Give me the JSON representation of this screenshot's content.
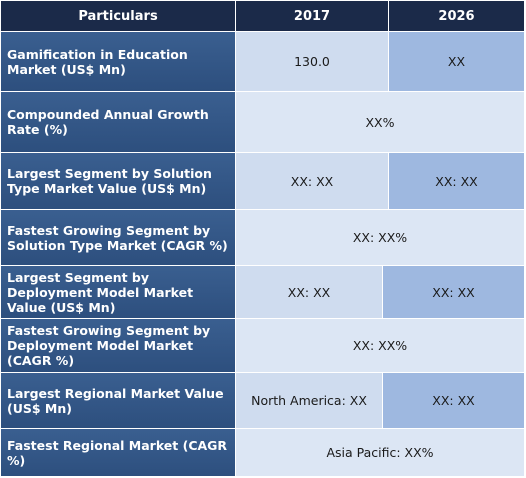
{
  "header": {
    "particulars": "Particulars",
    "year1": "2017",
    "year2": "2026"
  },
  "rows": [
    {
      "label": "Gamification in Education Market (US$ Mn)",
      "v2017": "130.0",
      "v2026": "XX"
    },
    {
      "label": "Compounded Annual Growth Rate (%)",
      "merged": "XX%"
    },
    {
      "label": "Largest Segment by Solution Type Market Value (US$ Mn)",
      "v2017": "XX: XX",
      "v2026": "XX: XX"
    },
    {
      "label": "Fastest Growing Segment by Solution Type Market (CAGR %)",
      "merged": "XX: XX%"
    },
    {
      "label": "Largest Segment by Deployment Model Market Value (US$ Mn)",
      "v2017": "XX: XX",
      "v2026": "XX: XX"
    },
    {
      "label": "Fastest Growing Segment by Deployment Model Market (CAGR %)",
      "merged": "XX: XX%"
    },
    {
      "label": "Largest Regional Market Value (US$ Mn)",
      "v2017": "North America: XX",
      "v2026": "XX: XX"
    },
    {
      "label": "Fastest Regional Market (CAGR %)",
      "merged": "Asia Pacific: XX%"
    }
  ]
}
